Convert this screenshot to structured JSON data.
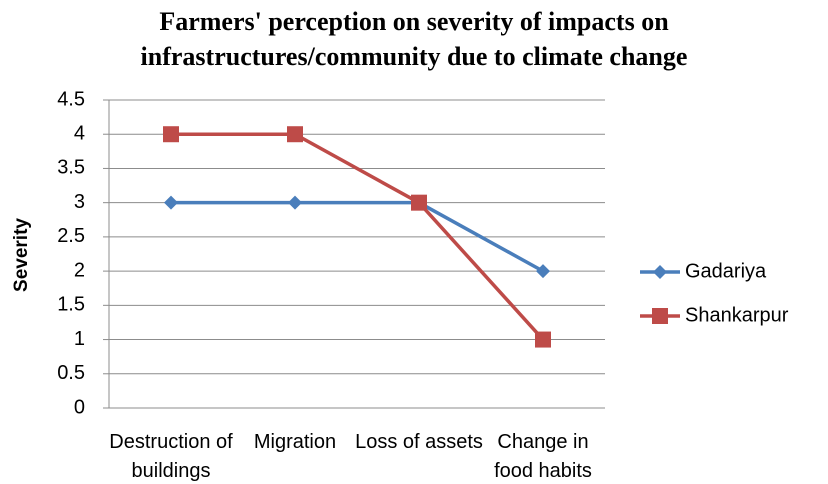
{
  "chart_data": {
    "type": "line",
    "title": "Farmers' perception on severity of impacts on infrastructures/community due to climate change",
    "ylabel": "Severity",
    "categories": [
      "Destruction of buildings",
      "Migration",
      "Loss of assets",
      "Change in food habits"
    ],
    "series": [
      {
        "name": "Gadariya",
        "color": "#4a7ebb",
        "marker": "diamond",
        "values": [
          3,
          3,
          3,
          2
        ]
      },
      {
        "name": "Shankarpur",
        "color": "#be4b48",
        "marker": "square",
        "values": [
          4,
          4,
          3,
          1
        ]
      }
    ],
    "ylim": [
      0,
      4.5
    ],
    "yticks": [
      0,
      0.5,
      1,
      1.5,
      2,
      2.5,
      3,
      3.5,
      4,
      4.5
    ],
    "grid": true,
    "legend": "right"
  }
}
